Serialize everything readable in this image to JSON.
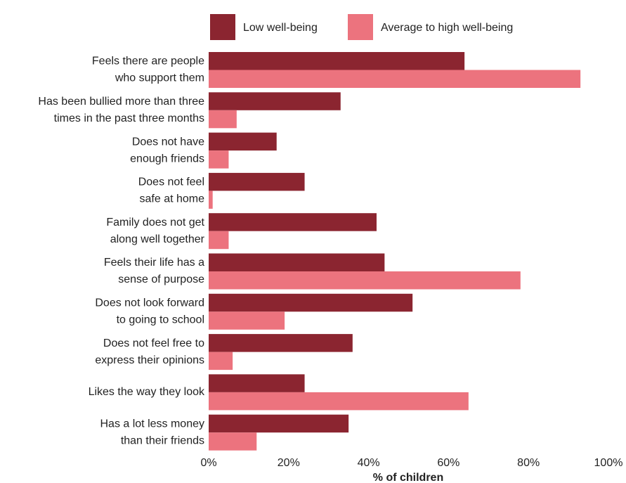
{
  "chart_data": {
    "type": "hbar",
    "categories": [
      [
        "Feels there are people",
        "who support them"
      ],
      [
        "Has been bullied more than three",
        "times in the past three months"
      ],
      [
        "Does not have",
        "enough friends"
      ],
      [
        "Does not feel",
        "safe at home"
      ],
      [
        "Family does not get",
        "along well together"
      ],
      [
        "Feels their life has a",
        "sense of purpose"
      ],
      [
        "Does not look forward",
        "to going to school"
      ],
      [
        "Does not feel free to",
        "express their opinions"
      ],
      [
        "Likes the way they look"
      ],
      [
        "Has a lot less money",
        "than their friends"
      ]
    ],
    "series": [
      {
        "name": "Low well-being",
        "color": "#8b2530",
        "values": [
          64,
          33,
          17,
          24,
          42,
          44,
          51,
          36,
          24,
          35
        ]
      },
      {
        "name": "Average to high well-being",
        "color": "#ec737e",
        "values": [
          93,
          7,
          5,
          1,
          5,
          78,
          19,
          6,
          65,
          12
        ]
      }
    ],
    "xlim": [
      0,
      100
    ],
    "xticks": [
      {
        "value": 0,
        "label": "0%"
      },
      {
        "value": 20,
        "label": "20%"
      },
      {
        "value": 40,
        "label": "40%"
      },
      {
        "value": 60,
        "label": "60%"
      },
      {
        "value": 80,
        "label": "80%"
      },
      {
        "value": 100,
        "label": "100%"
      }
    ],
    "xlabel": "% of children",
    "grid": false,
    "legend": "top"
  }
}
